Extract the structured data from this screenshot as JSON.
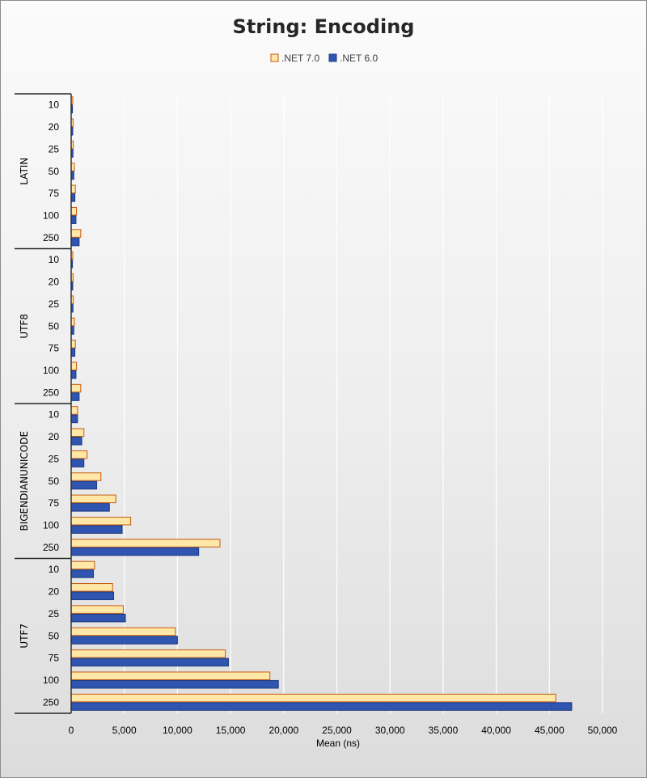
{
  "chart_data": {
    "type": "bar",
    "orientation": "horizontal",
    "title": "String: Encoding",
    "xlabel": "Mean (ns)",
    "xlim": [
      0,
      50000
    ],
    "xticks": [
      0,
      5000,
      10000,
      15000,
      20000,
      25000,
      30000,
      35000,
      40000,
      45000,
      50000
    ],
    "xtick_labels": [
      "0",
      "5,000",
      "10,000",
      "15,000",
      "20,000",
      "25,000",
      "30,000",
      "35,000",
      "40,000",
      "45,000",
      "50,000"
    ],
    "grid": "vertical",
    "legend": "top-center",
    "groups": [
      {
        "name": "LATIN",
        "categories": [
          "10",
          "20",
          "25",
          "50",
          "75",
          "100",
          "250"
        ]
      },
      {
        "name": "UTF8",
        "categories": [
          "10",
          "20",
          "25",
          "50",
          "75",
          "100",
          "250"
        ]
      },
      {
        "name": "BIGENDIANUNICODE",
        "categories": [
          "10",
          "20",
          "25",
          "50",
          "75",
          "100",
          "250"
        ]
      },
      {
        "name": "UTF7",
        "categories": [
          "10",
          "20",
          "25",
          "50",
          "75",
          "100",
          "250"
        ]
      }
    ],
    "series": [
      {
        "name": ".NET 7.0",
        "color": "#FFE7A8",
        "border": "#C55A11",
        "values": [
          [
            150,
            180,
            200,
            300,
            400,
            500,
            900
          ],
          [
            150,
            180,
            200,
            300,
            400,
            500,
            900
          ],
          [
            600,
            1200,
            1500,
            2800,
            4200,
            5600,
            14000
          ],
          [
            2200,
            3900,
            4900,
            9800,
            14500,
            18700,
            45600
          ]
        ]
      },
      {
        "name": ".NET 6.0",
        "color": "#2F55B0",
        "border": "#1F3B80",
        "values": [
          [
            120,
            150,
            170,
            250,
            350,
            450,
            750
          ],
          [
            120,
            150,
            170,
            250,
            350,
            450,
            750
          ],
          [
            600,
            1000,
            1200,
            2400,
            3600,
            4800,
            12000
          ],
          [
            2100,
            4000,
            5100,
            10000,
            14800,
            19500,
            47100
          ]
        ]
      }
    ]
  }
}
